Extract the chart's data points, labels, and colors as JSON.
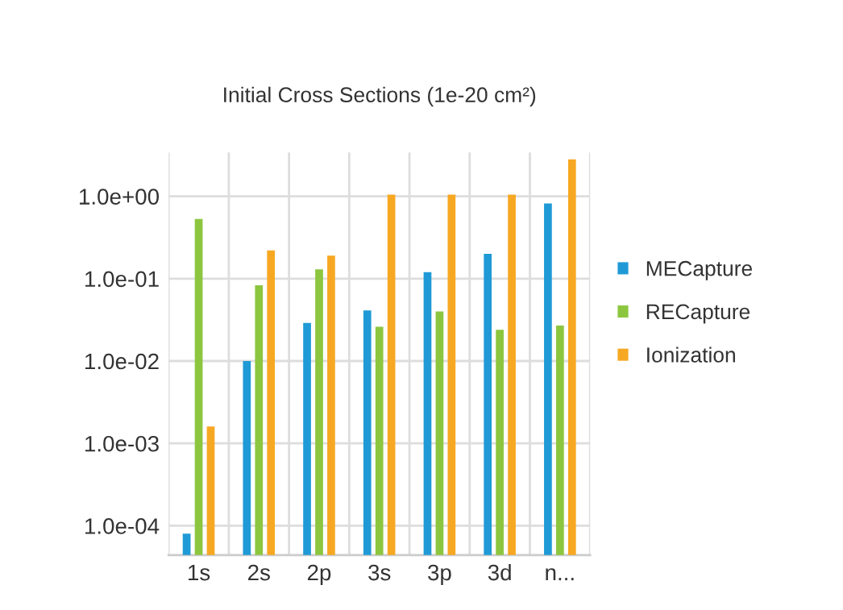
{
  "chart_data": {
    "type": "bar",
    "title": "Initial Cross Sections (1e-20 cm²)",
    "categories": [
      "1s",
      "2s",
      "2p",
      "3s",
      "3p",
      "3d",
      "n..."
    ],
    "series": [
      {
        "name": "MECapture",
        "color": "#1f9ad6",
        "values": [
          8e-05,
          0.01,
          0.029,
          0.041,
          0.12,
          0.2,
          0.82
        ]
      },
      {
        "name": "RECapture",
        "color": "#8cc63f",
        "values": [
          0.53,
          0.083,
          0.13,
          0.026,
          0.04,
          0.024,
          0.027
        ]
      },
      {
        "name": "Ionization",
        "color": "#f7a823",
        "values": [
          0.0016,
          0.22,
          0.19,
          1.05,
          1.05,
          1.05,
          2.8
        ]
      }
    ],
    "log": true,
    "ylim": [
      4.4e-05,
      3.4
    ],
    "yticks": [
      {
        "value": 0.0001,
        "label": "1.0e-04"
      },
      {
        "value": 0.001,
        "label": "1.0e-03"
      },
      {
        "value": 0.01,
        "label": "1.0e-02"
      },
      {
        "value": 0.1,
        "label": "1.0e-01"
      },
      {
        "value": 1,
        "label": "1.0e+00"
      }
    ],
    "grid": true,
    "legend": "right"
  }
}
